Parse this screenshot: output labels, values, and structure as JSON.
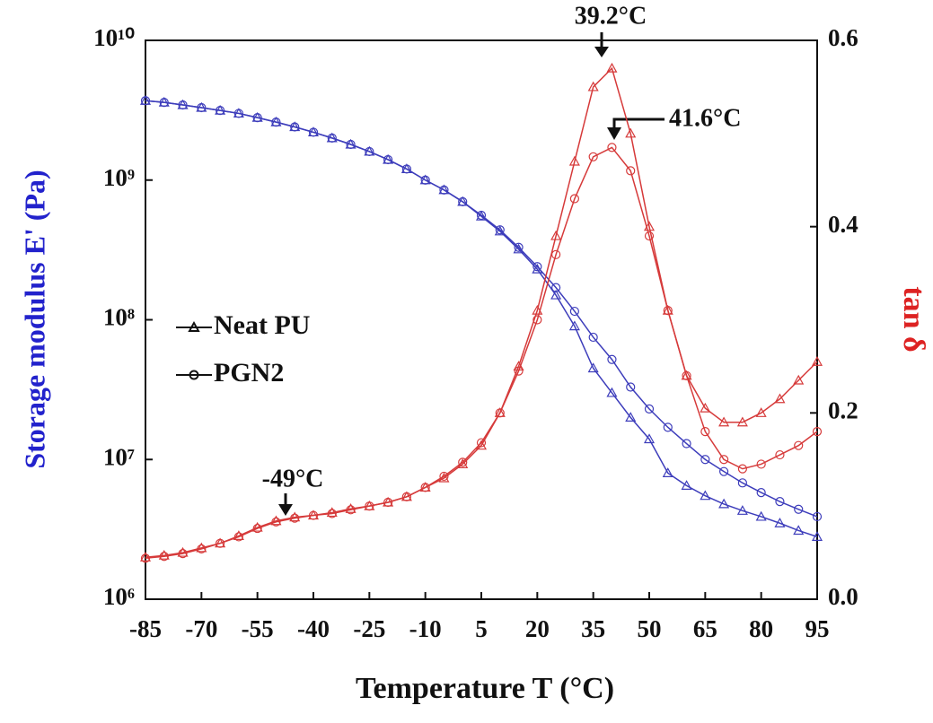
{
  "chart_data": {
    "type": "line",
    "x_label": "Temperature T (°C)",
    "y_label": "Storage modulus E' (Pa)",
    "y2_label": "tan δ",
    "x": [
      -85,
      -80,
      -75,
      -70,
      -65,
      -60,
      -55,
      -50,
      -45,
      -40,
      -35,
      -30,
      -25,
      -20,
      -15,
      -10,
      -5,
      0,
      5,
      10,
      15,
      20,
      25,
      30,
      35,
      40,
      45,
      50,
      55,
      60,
      65,
      70,
      75,
      80,
      85,
      90,
      95
    ],
    "xlim": [
      -85,
      95
    ],
    "xticks": [
      -85,
      -70,
      -55,
      -40,
      -25,
      -10,
      5,
      20,
      35,
      50,
      65,
      80,
      95
    ],
    "ylim": [
      1000000,
      10000000000
    ],
    "yscale": "log",
    "yticks": [
      {
        "value": 1000000,
        "label": "10⁶"
      },
      {
        "value": 10000000,
        "label": "10⁷"
      },
      {
        "value": 100000000,
        "label": "10⁸"
      },
      {
        "value": 1000000000,
        "label": "10⁹"
      },
      {
        "value": 10000000000,
        "label": "10¹⁰"
      }
    ],
    "y2lim": [
      0,
      0.6
    ],
    "y2ticks": [
      {
        "value": 0,
        "label": "0.0"
      },
      0.2,
      0.4,
      0.6
    ],
    "legend": "left",
    "series": [
      {
        "name": "Neat PU",
        "color": "#3d3dbb",
        "marker": "triangle",
        "values": [
          3700000000,
          3600000000,
          3450000000,
          3300000000,
          3150000000,
          3000000000,
          2800000000,
          2600000000,
          2400000000,
          2200000000,
          2000000000,
          1800000000,
          1600000000,
          1400000000,
          1200000000,
          1000000000,
          850000000,
          700000000,
          550000000,
          430000000,
          320000000,
          230000000,
          150000000,
          90000000,
          45000000,
          30000000,
          20000000,
          14000000,
          8000000,
          6500000,
          5500000,
          4800000,
          4300000,
          3900000,
          3500000,
          3100000,
          2800000
        ]
      },
      {
        "name": "PGN2",
        "color": "#3d3dbb",
        "marker": "circle",
        "values": [
          3700000000,
          3600000000,
          3450000000,
          3300000000,
          3150000000,
          3000000000,
          2800000000,
          2600000000,
          2400000000,
          2200000000,
          2000000000,
          1800000000,
          1600000000,
          1400000000,
          1200000000,
          1000000000,
          850000000,
          700000000,
          560000000,
          440000000,
          330000000,
          240000000,
          170000000,
          115000000,
          75000000,
          52000000,
          33000000,
          23000000,
          17000000,
          13000000,
          10000000,
          8200000,
          6800000,
          5800000,
          5000000,
          4400000,
          3900000
        ]
      },
      {
        "axis": "y2",
        "color": "#d63a3a",
        "marker": "triangle",
        "values": [
          0.045,
          0.047,
          0.05,
          0.055,
          0.06,
          0.068,
          0.077,
          0.084,
          0.088,
          0.09,
          0.093,
          0.097,
          0.1,
          0.104,
          0.11,
          0.12,
          0.13,
          0.145,
          0.165,
          0.2,
          0.25,
          0.31,
          0.39,
          0.47,
          0.55,
          0.57,
          0.5,
          0.4,
          0.31,
          0.24,
          0.205,
          0.19,
          0.19,
          0.2,
          0.215,
          0.235,
          0.255
        ]
      },
      {
        "axis": "y2",
        "color": "#d63a3a",
        "marker": "circle",
        "values": [
          0.044,
          0.046,
          0.049,
          0.054,
          0.06,
          0.067,
          0.076,
          0.083,
          0.087,
          0.09,
          0.092,
          0.096,
          0.1,
          0.104,
          0.11,
          0.12,
          0.132,
          0.147,
          0.168,
          0.2,
          0.245,
          0.3,
          0.37,
          0.43,
          0.475,
          0.485,
          0.46,
          0.39,
          0.31,
          0.24,
          0.18,
          0.15,
          0.14,
          0.145,
          0.155,
          0.165,
          0.18
        ]
      }
    ],
    "annotations": [
      "39.2°C",
      "41.6°C",
      "-49°C"
    ]
  }
}
